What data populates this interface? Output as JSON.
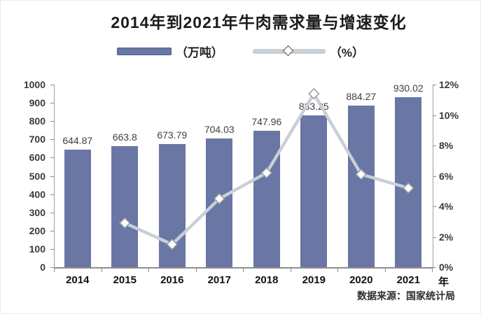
{
  "chart_data": {
    "type": "bar",
    "title": "2014年到2021年牛肉需求量与增速变化",
    "categories": [
      "2014",
      "2015",
      "2016",
      "2017",
      "2018",
      "2019",
      "2020",
      "2021"
    ],
    "x_axis_suffix": "年",
    "series": [
      {
        "name": "（万吨）",
        "kind": "bar",
        "axis": "left",
        "values": [
          644.87,
          663.8,
          673.79,
          704.03,
          747.96,
          833.25,
          884.27,
          930.02
        ],
        "labels": [
          "644.87",
          "663.8",
          "673.79",
          "704.03",
          "747.96",
          "833.25",
          "884.27",
          "930.02"
        ]
      },
      {
        "name": "（%）",
        "kind": "line",
        "axis": "right",
        "values": [
          null,
          2.9,
          1.5,
          4.5,
          6.2,
          11.4,
          6.1,
          5.2
        ]
      }
    ],
    "left_axis": {
      "min": 0,
      "max": 1000,
      "step": 100,
      "tick_labels": [
        "1000",
        "900",
        "800",
        "700",
        "600",
        "500",
        "400",
        "300",
        "200",
        "100",
        "0"
      ]
    },
    "right_axis": {
      "min": 0,
      "max": 12,
      "step": 2,
      "tick_labels": [
        "12%",
        "10%",
        "8%",
        "6%",
        "4%",
        "2%",
        "0%"
      ]
    },
    "grid": false,
    "legend_position": "top",
    "source": "数据来源：国家统计局"
  },
  "colors": {
    "bar": "#6A76A3",
    "bar_border": "#46589B",
    "line": "#C9CFD5",
    "marker_stroke": "#9AA0A6",
    "axis": "#8E8E8E",
    "text": "#3A3A3A"
  }
}
